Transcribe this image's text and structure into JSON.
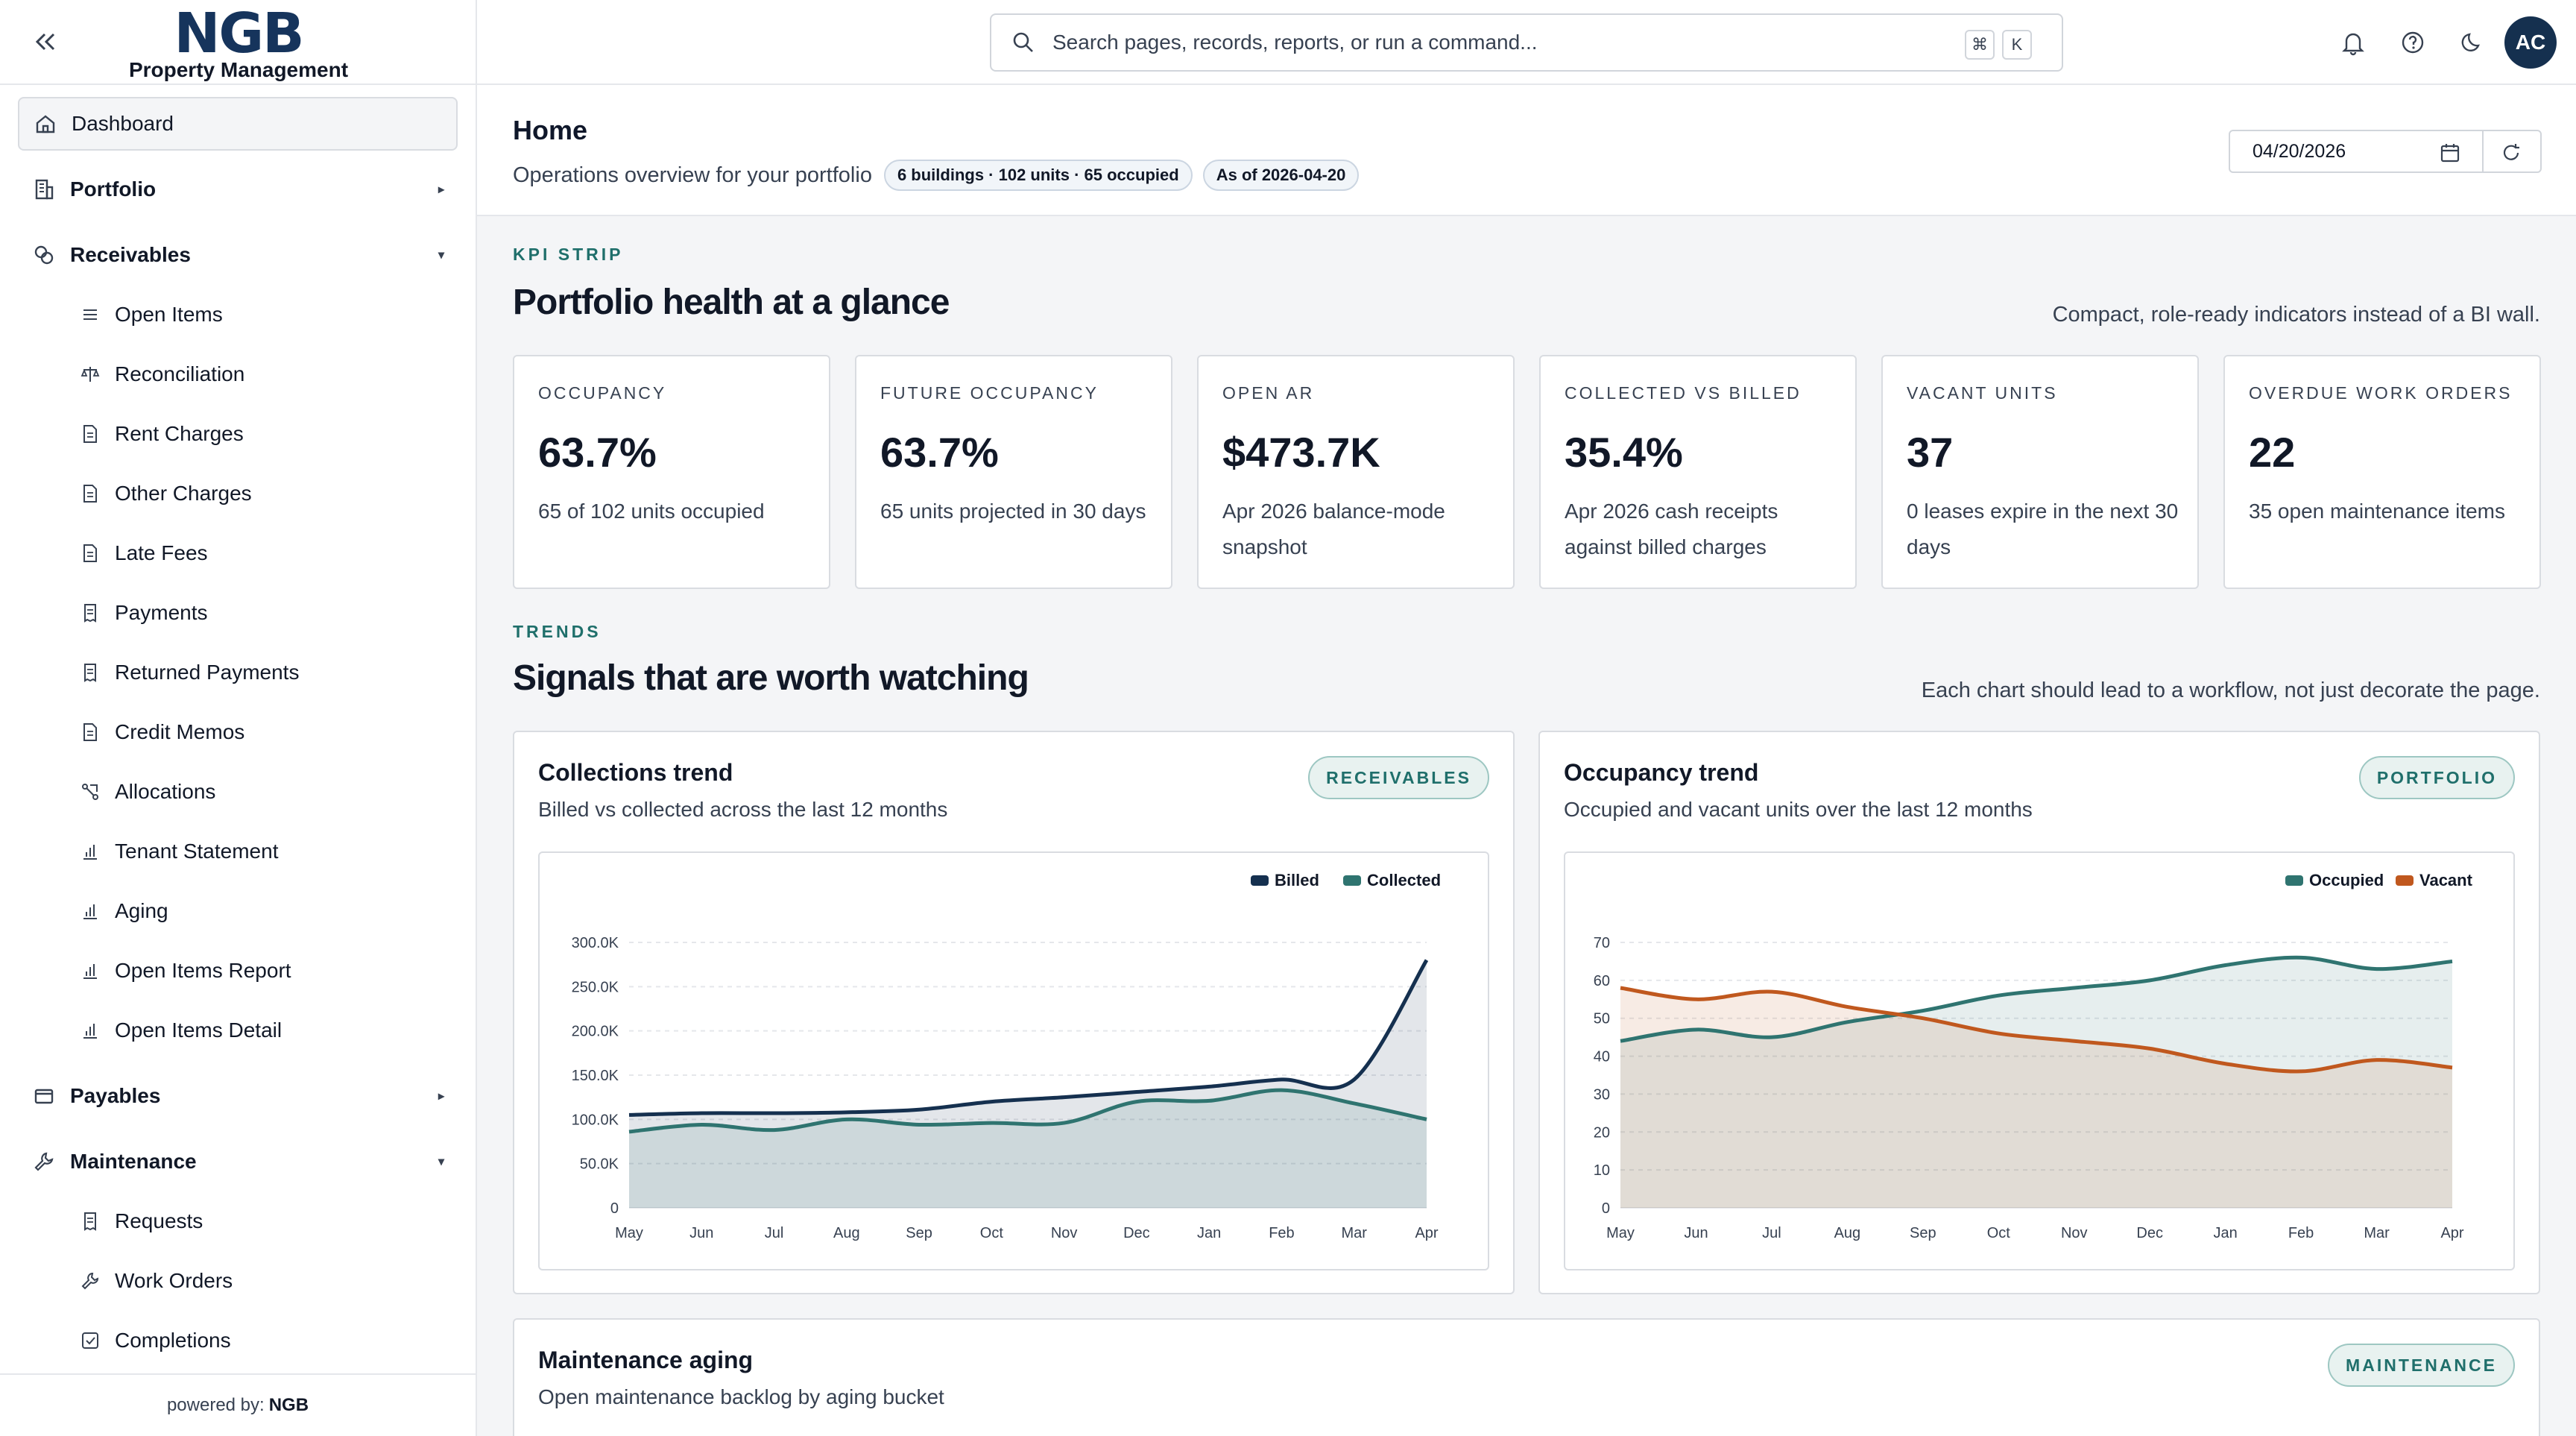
{
  "brand": {
    "logo": "NGB",
    "subtitle": "Property Management",
    "footer_prefix": "powered by:",
    "footer_brand": "NGB"
  },
  "sidebar": {
    "dashboard": "Dashboard",
    "portfolio": "Portfolio",
    "receivables": "Receivables",
    "receivables_items": [
      "Open Items",
      "Reconciliation",
      "Rent Charges",
      "Other Charges",
      "Late Fees",
      "Payments",
      "Returned Payments",
      "Credit Memos",
      "Allocations",
      "Tenant Statement",
      "Aging",
      "Open Items Report",
      "Open Items Detail"
    ],
    "payables": "Payables",
    "maintenance": "Maintenance",
    "maintenance_items": [
      "Requests",
      "Work Orders",
      "Completions"
    ]
  },
  "topbar": {
    "search_placeholder": "Search pages, records, reports, or run a command...",
    "kbd_cmd": "⌘",
    "kbd_k": "K",
    "avatar_initials": "AC"
  },
  "header": {
    "title": "Home",
    "subtitle": "Operations overview for your portfolio",
    "pill_stats": "6 buildings · 102 units · 65 occupied",
    "pill_asof": "As of 2026-04-20",
    "date_value": "04/20/2026"
  },
  "kpi_section": {
    "kicker": "KPI STRIP",
    "title": "Portfolio health at a glance",
    "note": "Compact, role-ready indicators instead of a BI wall."
  },
  "kpis": [
    {
      "label": "OCCUPANCY",
      "value": "63.7%",
      "desc": "65 of 102 units occupied"
    },
    {
      "label": "FUTURE OCCUPANCY",
      "value": "63.7%",
      "desc": "65 units projected in 30 days"
    },
    {
      "label": "OPEN AR",
      "value": "$473.7K",
      "desc": "Apr 2026 balance-mode snapshot"
    },
    {
      "label": "COLLECTED VS BILLED",
      "value": "35.4%",
      "desc": "Apr 2026 cash receipts against billed charges"
    },
    {
      "label": "VACANT UNITS",
      "value": "37",
      "desc": "0 leases expire in the next 30 days"
    },
    {
      "label": "OVERDUE WORK ORDERS",
      "value": "22",
      "desc": "35 open maintenance items"
    }
  ],
  "trends_section": {
    "kicker": "TRENDS",
    "title": "Signals that are worth watching",
    "note": "Each chart should lead to a workflow, not just decorate the page."
  },
  "collections_card": {
    "title": "Collections trend",
    "subtitle": "Billed vs collected across the last 12 months",
    "tag": "RECEIVABLES"
  },
  "occupancy_card": {
    "title": "Occupancy trend",
    "subtitle": "Occupied and vacant units over the last 12 months",
    "tag": "PORTFOLIO"
  },
  "maintenance_card": {
    "title": "Maintenance aging",
    "subtitle": "Open maintenance backlog by aging bucket",
    "tag": "MAINTENANCE"
  },
  "colors": {
    "navy": "#15304f",
    "teal": "#2f7470",
    "orange": "#c0581e",
    "accent_text": "#1f6f6b"
  },
  "chart_data": [
    {
      "type": "area",
      "categories": [
        "May",
        "Jun",
        "Jul",
        "Aug",
        "Sep",
        "Oct",
        "Nov",
        "Dec",
        "Jan",
        "Feb",
        "Mar",
        "Apr"
      ],
      "series": [
        {
          "name": "Billed",
          "color": "#15304f",
          "values": [
            105000,
            107000,
            107000,
            108000,
            111000,
            120000,
            125000,
            131000,
            137000,
            145000,
            145000,
            280000
          ]
        },
        {
          "name": "Collected",
          "color": "#2f7470",
          "values": [
            86000,
            94000,
            88000,
            100000,
            94000,
            96000,
            96000,
            120000,
            121000,
            133000,
            118000,
            100000
          ]
        }
      ],
      "ylim": [
        0,
        300000
      ],
      "yticks": [
        "0",
        "50.0K",
        "100.0K",
        "150.0K",
        "200.0K",
        "250.0K",
        "300.0K"
      ],
      "legend": "top-right",
      "grid": true
    },
    {
      "type": "area",
      "categories": [
        "May",
        "Jun",
        "Jul",
        "Aug",
        "Sep",
        "Oct",
        "Nov",
        "Dec",
        "Jan",
        "Feb",
        "Mar",
        "Apr"
      ],
      "series": [
        {
          "name": "Occupied",
          "color": "#2f7470",
          "values": [
            44,
            47,
            45,
            49,
            52,
            56,
            58,
            60,
            64,
            66,
            63,
            65
          ]
        },
        {
          "name": "Vacant",
          "color": "#c0581e",
          "values": [
            58,
            55,
            57,
            53,
            50,
            46,
            44,
            42,
            38,
            36,
            39,
            37
          ]
        }
      ],
      "ylim": [
        0,
        70
      ],
      "yticks": [
        "0",
        "10",
        "20",
        "30",
        "40",
        "50",
        "60",
        "70"
      ],
      "legend": "top-right",
      "grid": true
    }
  ]
}
